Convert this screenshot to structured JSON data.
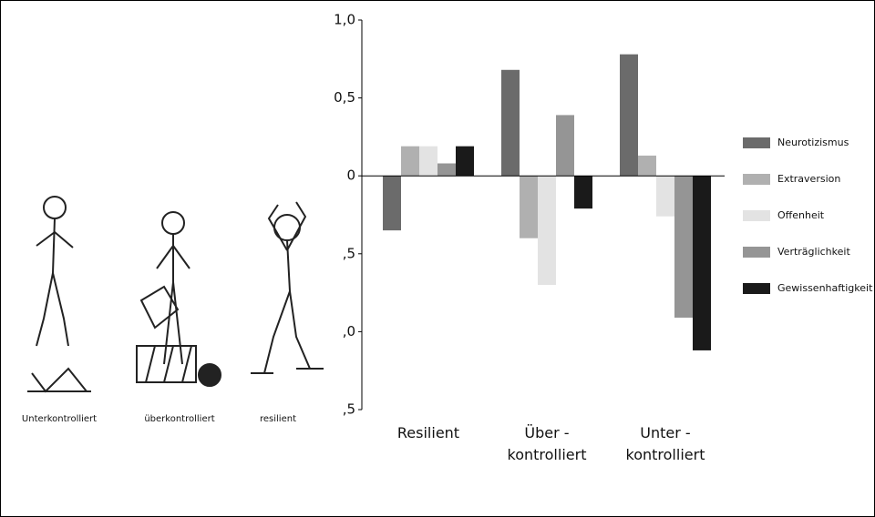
{
  "illustrations": {
    "captions": [
      "Unterkontrolliert",
      "überkontrolliert",
      "resilient"
    ]
  },
  "chart_data": {
    "type": "bar",
    "categories": [
      [
        "Resilient"
      ],
      [
        "Über -",
        "kontrolliert"
      ],
      [
        "Unter -",
        "kontrolliert"
      ]
    ],
    "series": [
      {
        "name": "Neurotizismus",
        "color": "#6b6b6b",
        "values": [
          -0.35,
          0.68,
          0.78
        ]
      },
      {
        "name": "Extraversion",
        "color": "#b0b0b0",
        "values": [
          0.19,
          -0.4,
          0.13
        ]
      },
      {
        "name": "Offenheit",
        "color": "#e3e3e3",
        "values": [
          0.19,
          -0.7,
          -0.26
        ]
      },
      {
        "name": "Verträglichkeit",
        "color": "#959595",
        "values": [
          0.08,
          0.39,
          -0.91
        ]
      },
      {
        "name": "Gewissenhaftigkeit",
        "color": "#1a1a1a",
        "values": [
          0.19,
          -0.21,
          -1.12
        ]
      }
    ],
    "ylim": [
      -1.5,
      1.0
    ],
    "yticks": [
      {
        "value": 1.0,
        "label": "1,0"
      },
      {
        "value": 0.5,
        "label": "0,5"
      },
      0,
      {
        "value": -0.5,
        "label": ",5"
      },
      {
        "value": -1.0,
        "label": ",0"
      },
      {
        "value": -1.5,
        "label": ",5"
      }
    ]
  }
}
